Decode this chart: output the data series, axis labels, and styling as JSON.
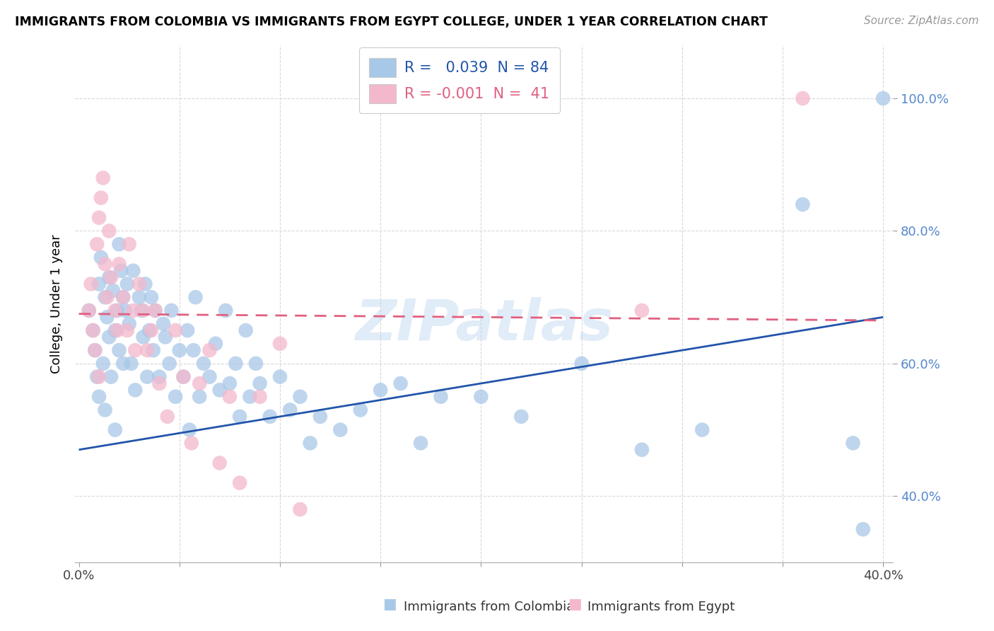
{
  "title": "IMMIGRANTS FROM COLOMBIA VS IMMIGRANTS FROM EGYPT COLLEGE, UNDER 1 YEAR CORRELATION CHART",
  "source": "Source: ZipAtlas.com",
  "ylabel": "College, Under 1 year",
  "xlim": [
    0.0,
    0.4
  ],
  "ylim": [
    0.3,
    1.08
  ],
  "xticks": [
    0.0,
    0.05,
    0.1,
    0.15,
    0.2,
    0.25,
    0.3,
    0.35,
    0.4
  ],
  "yticks": [
    0.4,
    0.6,
    0.8,
    1.0
  ],
  "yticklabels": [
    "40.0%",
    "60.0%",
    "80.0%",
    "100.0%"
  ],
  "legend_r_colombia": " 0.039",
  "legend_n_colombia": "84",
  "legend_r_egypt": "-0.001",
  "legend_n_egypt": "41",
  "color_colombia": "#a8c8e8",
  "color_egypt": "#f4b8cc",
  "line_color_colombia": "#2255aa",
  "line_color_egypt": "#e06080",
  "watermark": "ZIPatlas",
  "grid_color": "#d8d8d8",
  "colombia_x": [
    0.005,
    0.007,
    0.008,
    0.009,
    0.01,
    0.01,
    0.011,
    0.012,
    0.013,
    0.013,
    0.014,
    0.015,
    0.015,
    0.016,
    0.017,
    0.018,
    0.018,
    0.019,
    0.02,
    0.02,
    0.021,
    0.022,
    0.022,
    0.023,
    0.024,
    0.025,
    0.026,
    0.027,
    0.028,
    0.03,
    0.031,
    0.032,
    0.033,
    0.034,
    0.035,
    0.036,
    0.037,
    0.038,
    0.04,
    0.042,
    0.043,
    0.045,
    0.046,
    0.048,
    0.05,
    0.052,
    0.054,
    0.055,
    0.057,
    0.058,
    0.06,
    0.062,
    0.065,
    0.068,
    0.07,
    0.073,
    0.075,
    0.078,
    0.08,
    0.083,
    0.085,
    0.088,
    0.09,
    0.095,
    0.1,
    0.105,
    0.11,
    0.115,
    0.12,
    0.13,
    0.14,
    0.15,
    0.16,
    0.17,
    0.18,
    0.2,
    0.22,
    0.25,
    0.28,
    0.31,
    0.36,
    0.385,
    0.39,
    0.4
  ],
  "colombia_y": [
    0.68,
    0.65,
    0.62,
    0.58,
    0.72,
    0.55,
    0.76,
    0.6,
    0.7,
    0.53,
    0.67,
    0.73,
    0.64,
    0.58,
    0.71,
    0.65,
    0.5,
    0.68,
    0.78,
    0.62,
    0.74,
    0.7,
    0.6,
    0.68,
    0.72,
    0.66,
    0.6,
    0.74,
    0.56,
    0.7,
    0.68,
    0.64,
    0.72,
    0.58,
    0.65,
    0.7,
    0.62,
    0.68,
    0.58,
    0.66,
    0.64,
    0.6,
    0.68,
    0.55,
    0.62,
    0.58,
    0.65,
    0.5,
    0.62,
    0.7,
    0.55,
    0.6,
    0.58,
    0.63,
    0.56,
    0.68,
    0.57,
    0.6,
    0.52,
    0.65,
    0.55,
    0.6,
    0.57,
    0.52,
    0.58,
    0.53,
    0.55,
    0.48,
    0.52,
    0.5,
    0.53,
    0.56,
    0.57,
    0.48,
    0.55,
    0.55,
    0.52,
    0.6,
    0.47,
    0.5,
    0.84,
    0.48,
    0.35,
    1.0
  ],
  "egypt_x": [
    0.005,
    0.006,
    0.007,
    0.008,
    0.009,
    0.01,
    0.01,
    0.011,
    0.012,
    0.013,
    0.014,
    0.015,
    0.016,
    0.018,
    0.019,
    0.02,
    0.022,
    0.024,
    0.025,
    0.027,
    0.028,
    0.03,
    0.032,
    0.034,
    0.036,
    0.038,
    0.04,
    0.044,
    0.048,
    0.052,
    0.056,
    0.06,
    0.065,
    0.07,
    0.075,
    0.08,
    0.09,
    0.1,
    0.11,
    0.28,
    0.36
  ],
  "egypt_y": [
    0.68,
    0.72,
    0.65,
    0.62,
    0.78,
    0.58,
    0.82,
    0.85,
    0.88,
    0.75,
    0.7,
    0.8,
    0.73,
    0.68,
    0.65,
    0.75,
    0.7,
    0.65,
    0.78,
    0.68,
    0.62,
    0.72,
    0.68,
    0.62,
    0.65,
    0.68,
    0.57,
    0.52,
    0.65,
    0.58,
    0.48,
    0.57,
    0.62,
    0.45,
    0.55,
    0.42,
    0.55,
    0.63,
    0.38,
    0.68,
    1.0
  ]
}
